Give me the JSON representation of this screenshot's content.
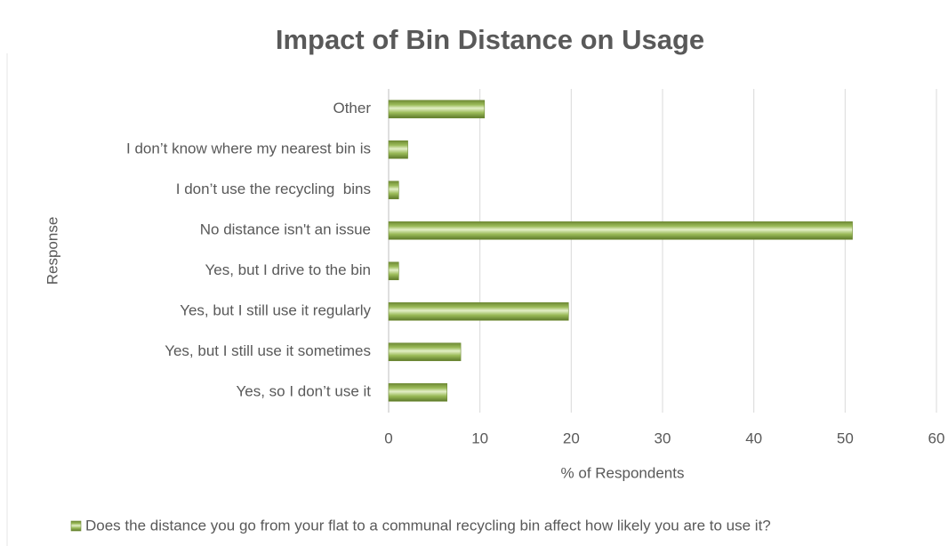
{
  "chart_data": {
    "type": "barh",
    "title": "Impact of Bin Distance on Usage",
    "xlabel": "% of Respondents",
    "ylabel": "Response",
    "categories": [
      "Other",
      "I don’t know where my nearest bin is",
      "I don’t use the recycling  bins",
      "No distance isn't an issue",
      "Yes, but I drive to the bin",
      "Yes, but I still use it regularly",
      "Yes, but I still use it sometimes",
      "Yes, so I don’t use it"
    ],
    "series": [
      {
        "name": "Does the distance you go from your flat to a communal recycling bin affect how likely you are to use it?",
        "color": "#9bbb59",
        "values": [
          10.5,
          2.1,
          1.1,
          50.8,
          1.1,
          19.7,
          7.9,
          6.4
        ]
      }
    ],
    "xlim": [
      0,
      60
    ],
    "xticks": [
      0,
      10,
      20,
      30,
      40,
      50,
      60
    ],
    "grid": true,
    "legend": "bottom"
  }
}
